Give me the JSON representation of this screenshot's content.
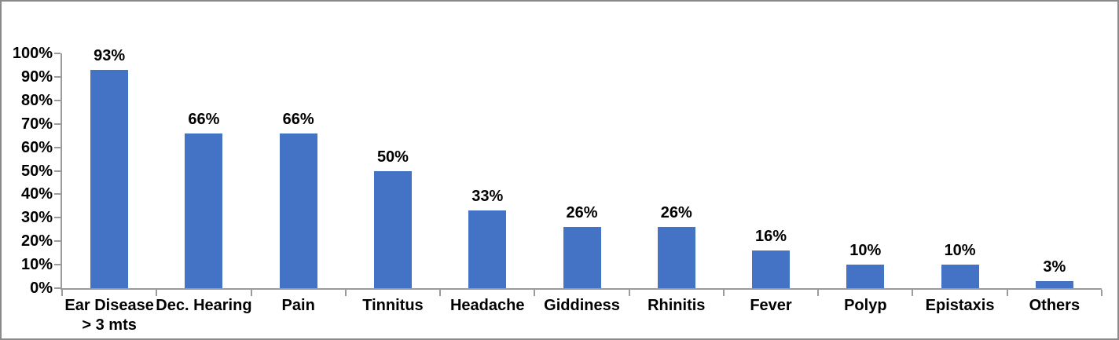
{
  "chart_data": {
    "type": "bar",
    "title": "",
    "xlabel": "",
    "ylabel": "",
    "categories": [
      "Ear Disease\n> 3 mts",
      "Dec. Hearing",
      "Pain",
      "Tinnitus",
      "Headache",
      "Giddiness",
      "Rhinitis",
      "Fever",
      "Polyp",
      "Epistaxis",
      "Others"
    ],
    "values": [
      93,
      66,
      66,
      50,
      33,
      26,
      26,
      16,
      10,
      10,
      3
    ],
    "data_labels": [
      "93%",
      "66%",
      "66%",
      "50%",
      "33%",
      "26%",
      "26%",
      "16%",
      "10%",
      "10%",
      "3%"
    ],
    "y_tick_labels": [
      "0%",
      "10%",
      "20%",
      "30%",
      "40%",
      "50%",
      "60%",
      "70%",
      "80%",
      "90%",
      "100%"
    ],
    "ylim": [
      0,
      100
    ],
    "grid": false,
    "legend": false,
    "bar_color": "#4472C4",
    "axis_color": "#9b9b9b",
    "text_color": "#000000"
  }
}
